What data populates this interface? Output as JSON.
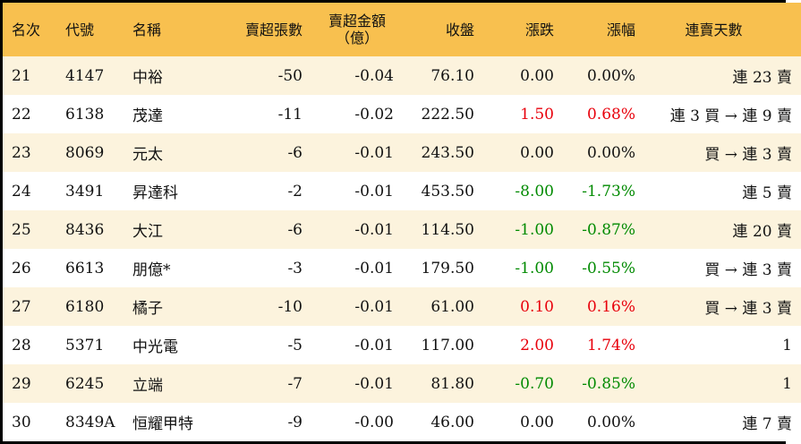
{
  "headers": [
    "名次",
    "代號",
    "名稱",
    "賣超張數",
    "賣超金額",
    "（億）",
    "收盤",
    "漲跌",
    "漲幅",
    "連賣天數"
  ],
  "colors": {
    "header_bg": "#f8c04f",
    "row_alt_bg": "#fcf3dd",
    "up": "#e8000b",
    "down": "#008a00"
  },
  "rows": [
    {
      "rank": "21",
      "code": "4147",
      "name": "中裕",
      "shares": "-50",
      "amount": "-0.04",
      "close": "76.10",
      "change": "0.00",
      "pct": "0.00%",
      "streak": "連 23 賣",
      "dir": ""
    },
    {
      "rank": "22",
      "code": "6138",
      "name": "茂達",
      "shares": "-11",
      "amount": "-0.02",
      "close": "222.50",
      "change": "1.50",
      "pct": "0.68%",
      "streak": "連 3 買 → 連 9 賣",
      "dir": "up"
    },
    {
      "rank": "23",
      "code": "8069",
      "name": "元太",
      "shares": "-6",
      "amount": "-0.01",
      "close": "243.50",
      "change": "0.00",
      "pct": "0.00%",
      "streak": "買 → 連 3 賣",
      "dir": ""
    },
    {
      "rank": "24",
      "code": "3491",
      "name": "昇達科",
      "shares": "-2",
      "amount": "-0.01",
      "close": "453.50",
      "change": "-8.00",
      "pct": "-1.73%",
      "streak": "連 5 賣",
      "dir": "down"
    },
    {
      "rank": "25",
      "code": "8436",
      "name": "大江",
      "shares": "-6",
      "amount": "-0.01",
      "close": "114.50",
      "change": "-1.00",
      "pct": "-0.87%",
      "streak": "連 20 賣",
      "dir": "down"
    },
    {
      "rank": "26",
      "code": "6613",
      "name": "朋億*",
      "shares": "-3",
      "amount": "-0.01",
      "close": "179.50",
      "change": "-1.00",
      "pct": "-0.55%",
      "streak": "買 → 連 3 賣",
      "dir": "down"
    },
    {
      "rank": "27",
      "code": "6180",
      "name": "橘子",
      "shares": "-10",
      "amount": "-0.01",
      "close": "61.00",
      "change": "0.10",
      "pct": "0.16%",
      "streak": "買 → 連 3 賣",
      "dir": "up"
    },
    {
      "rank": "28",
      "code": "5371",
      "name": "中光電",
      "shares": "-5",
      "amount": "-0.01",
      "close": "117.00",
      "change": "2.00",
      "pct": "1.74%",
      "streak": "1",
      "dir": "up"
    },
    {
      "rank": "29",
      "code": "6245",
      "name": "立端",
      "shares": "-7",
      "amount": "-0.01",
      "close": "81.80",
      "change": "-0.70",
      "pct": "-0.85%",
      "streak": "1",
      "dir": "down"
    },
    {
      "rank": "30",
      "code": "8349A",
      "name": "恒耀甲特",
      "shares": "-9",
      "amount": "-0.00",
      "close": "46.00",
      "change": "0.00",
      "pct": "0.00%",
      "streak": "連 7 賣",
      "dir": ""
    }
  ]
}
